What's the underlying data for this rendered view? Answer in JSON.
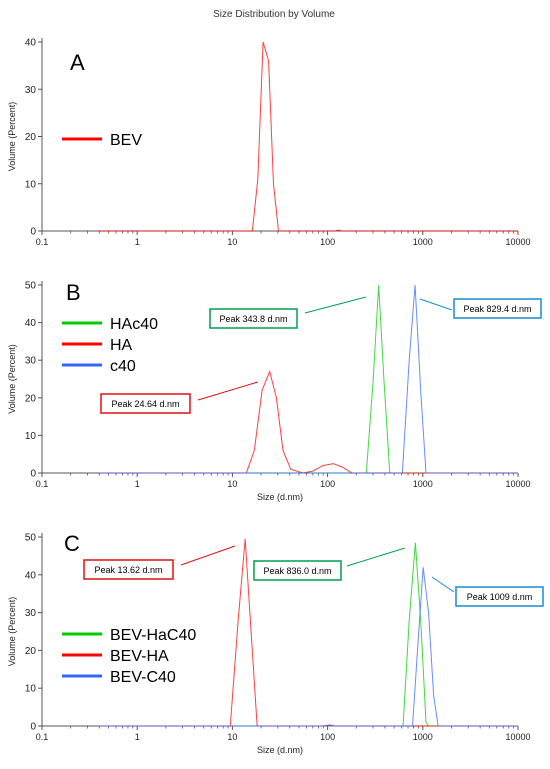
{
  "figure_title": "Size Distribution by Volume",
  "chart_data": [
    {
      "type": "line",
      "panel_letter": "A",
      "xscale": "log",
      "xlim": [
        0.1,
        10000
      ],
      "ylim": [
        0,
        40
      ],
      "x_ticks": [
        "0.1",
        "1",
        "10",
        "100",
        "1000",
        "10000"
      ],
      "y_ticks": [
        "0",
        "10",
        "20",
        "30",
        "40"
      ],
      "xlabel": "",
      "ylabel": "Volume (Percent)",
      "legend_position": "left",
      "series": [
        {
          "name": "BEV",
          "color": "#ff0000",
          "points": [
            [
              0.4,
              0
            ],
            [
              16.2,
              0
            ],
            [
              18.5,
              11
            ],
            [
              21,
              40
            ],
            [
              24,
              36
            ],
            [
              27,
              10
            ],
            [
              30.5,
              0
            ],
            [
              120,
              0
            ],
            [
              130,
              0.2
            ],
            [
              140,
              0
            ],
            [
              10000,
              0
            ]
          ]
        }
      ],
      "annotations": []
    },
    {
      "type": "line",
      "panel_letter": "B",
      "xscale": "log",
      "xlim": [
        0.1,
        10000
      ],
      "ylim": [
        0,
        50
      ],
      "x_ticks": [
        "0.1",
        "1",
        "10",
        "100",
        "1000",
        "10000"
      ],
      "y_ticks": [
        "0",
        "10",
        "20",
        "30",
        "40",
        "50"
      ],
      "xlabel": "Size (d.nm)",
      "ylabel": "Volume (Percent)",
      "legend_position": "left",
      "series": [
        {
          "name": "HAc40",
          "color": "#00cc00",
          "points": [
            [
              0.4,
              0
            ],
            [
              255,
              0
            ],
            [
              300,
              24
            ],
            [
              343.8,
              50
            ],
            [
              390,
              25
            ],
            [
              450,
              0
            ],
            [
              10000,
              0
            ]
          ]
        },
        {
          "name": "HA",
          "color": "#ff0000",
          "points": [
            [
              0.4,
              0
            ],
            [
              14,
              0
            ],
            [
              17,
              6
            ],
            [
              20.5,
              22
            ],
            [
              24.64,
              27
            ],
            [
              29,
              20
            ],
            [
              34,
              6
            ],
            [
              41,
              1
            ],
            [
              55,
              0
            ],
            [
              70,
              0.5
            ],
            [
              90,
              2
            ],
            [
              115,
              2.5
            ],
            [
              145,
              1.5
            ],
            [
              180,
              0
            ],
            [
              10000,
              0
            ]
          ]
        },
        {
          "name": "c40",
          "color": "#3366ff",
          "points": [
            [
              0.4,
              0
            ],
            [
              610,
              0
            ],
            [
              720,
              30
            ],
            [
              829.4,
              50
            ],
            [
              950,
              22
            ],
            [
              1080,
              0
            ],
            [
              10000,
              0
            ]
          ]
        }
      ],
      "annotations": [
        {
          "text": "Peak  24.64 d.nm",
          "color": "#e01010"
        },
        {
          "text": "Peak  343.8 d.nm",
          "color": "#00a050"
        },
        {
          "text": "Peak  829.4 d.nm",
          "color": "#1a8ccf"
        }
      ]
    },
    {
      "type": "line",
      "panel_letter": "C",
      "xscale": "log",
      "xlim": [
        0.1,
        10000
      ],
      "ylim": [
        0,
        50
      ],
      "x_ticks": [
        "0.1",
        "1",
        "10",
        "100",
        "1000",
        "10000"
      ],
      "y_ticks": [
        "0",
        "10",
        "20",
        "30",
        "40",
        "50"
      ],
      "xlabel": "Size (d.nm)",
      "ylabel": "Volume (Percent)",
      "legend_position": "left",
      "series": [
        {
          "name": "BEV-HaC40",
          "color": "#00cc00",
          "points": [
            [
              0.4,
              0
            ],
            [
              620,
              0
            ],
            [
              720,
              28
            ],
            [
              836.0,
              48.5
            ],
            [
              960,
              26
            ],
            [
              1080,
              1
            ],
            [
              1150,
              0
            ],
            [
              10000,
              0
            ]
          ]
        },
        {
          "name": "BEV-HA",
          "color": "#ff0000",
          "points": [
            [
              0.4,
              0
            ],
            [
              9.5,
              0
            ],
            [
              11.5,
              28
            ],
            [
              13.62,
              49.5
            ],
            [
              15.8,
              24
            ],
            [
              18.2,
              0
            ],
            [
              90,
              0
            ],
            [
              105,
              0.3
            ],
            [
              120,
              0
            ],
            [
              10000,
              0
            ]
          ]
        },
        {
          "name": "BEV-C40",
          "color": "#3366ff",
          "points": [
            [
              0.4,
              0
            ],
            [
              780,
              0
            ],
            [
              880,
              20
            ],
            [
              1009,
              42
            ],
            [
              1150,
              30
            ],
            [
              1300,
              8
            ],
            [
              1450,
              0
            ],
            [
              10000,
              0
            ]
          ]
        }
      ],
      "annotations": [
        {
          "text": "Peak  13.62 d.nm",
          "color": "#e01010"
        },
        {
          "text": "Peak  836.0 d.nm",
          "color": "#00a050"
        },
        {
          "text": "Peak  1009 d.nm",
          "color": "#1a8ccf"
        }
      ]
    }
  ]
}
